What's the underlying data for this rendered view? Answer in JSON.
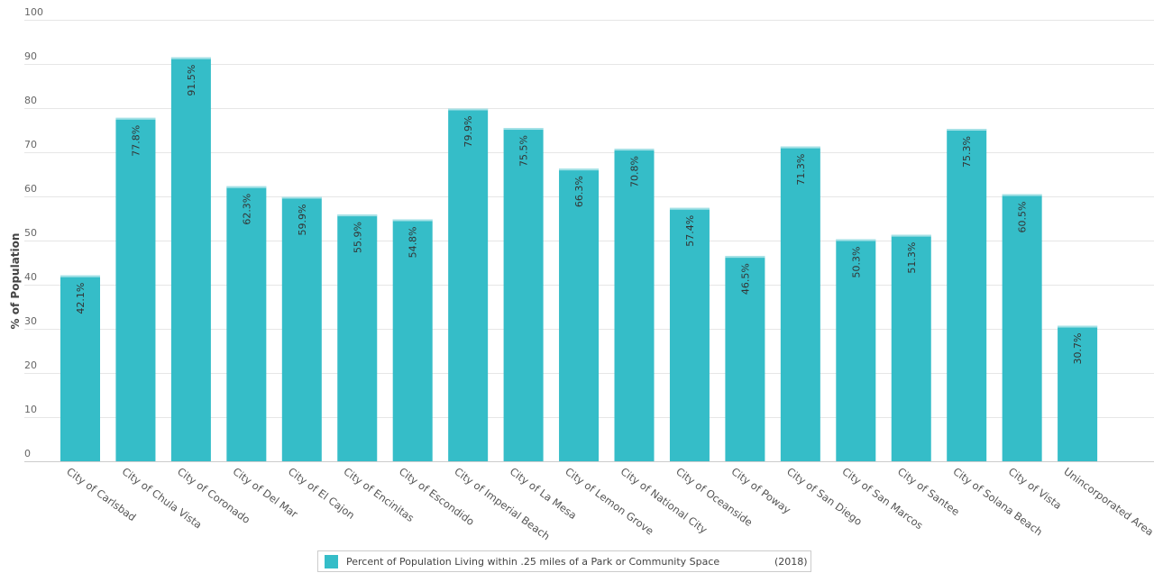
{
  "chart_data": {
    "type": "bar",
    "ylabel": "% of Population",
    "ylim": [
      0,
      100
    ],
    "yticks": [
      0,
      10,
      20,
      30,
      40,
      50,
      60,
      70,
      80,
      90,
      100
    ],
    "grid": true,
    "legend_position": "bottom-center",
    "bar_color": "#35BDC8",
    "categories": [
      "City of Carlsbad",
      "City of Chula Vista",
      "City of Coronado",
      "City of Del Mar",
      "City of El Cajon",
      "City of Encinitas",
      "City of Escondido",
      "City of Imperial Beach",
      "City of La Mesa",
      "City of Lemon Grove",
      "City of National City",
      "City of Oceanside",
      "City of Poway",
      "City of San Diego",
      "City of San Marcos",
      "City of Santee",
      "City of Solana Beach",
      "City of Vista",
      "Unincorporated Area"
    ],
    "series": [
      {
        "name": "Percent of Population Living within .25 miles of a Park or Community Space",
        "values": [
          42.1,
          77.8,
          91.5,
          62.3,
          59.9,
          55.9,
          54.8,
          79.9,
          75.5,
          66.3,
          70.8,
          57.4,
          46.5,
          71.3,
          50.3,
          51.3,
          75.3,
          60.5,
          30.7
        ],
        "data_labels": [
          "42.1%",
          "77.8%",
          "91.5%",
          "62.3%",
          "59.9%",
          "55.9%",
          "54.8%",
          "79.9%",
          "75.5%",
          "66.3%",
          "70.8%",
          "57.4%",
          "46.5%",
          "71.3%",
          "50.3%",
          "51.3%",
          "75.3%",
          "60.5%",
          "30.7%"
        ]
      }
    ]
  },
  "legend": {
    "label": "Percent of Population Living within .25 miles of a Park or Community Space",
    "year": "(2018)"
  }
}
